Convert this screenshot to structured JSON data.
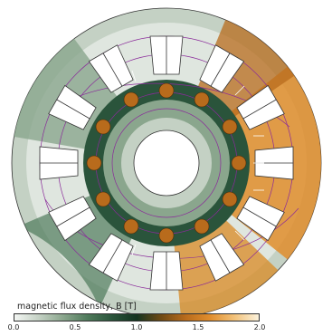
{
  "legend": {
    "title": "magnetic flux density, B [T]",
    "ticks": [
      "0.0",
      "0.5",
      "1.0",
      "1.5",
      "2.0"
    ]
  },
  "colors": {
    "background_field": "#b7c5b7",
    "air": "#ffffff",
    "low_flux": "#dfe6df",
    "mid_flux": "#2f5f3f",
    "dark_flux": "#12351f",
    "high_flux": "#d98a24",
    "very_high_flux": "#f2c27a",
    "winding": "#ffffff",
    "flux_lines": "#8a2a9a",
    "arrows": "#ffffff"
  },
  "colorbar_stops": [
    "#f3f6f3",
    "#c4d1c4",
    "#8aa68d",
    "#4f7a5b",
    "#2a543b",
    "#14341f",
    "#6f4a14",
    "#b86b1c",
    "#e08d2d",
    "#f2c27a",
    "#fbf2dc"
  ]
}
